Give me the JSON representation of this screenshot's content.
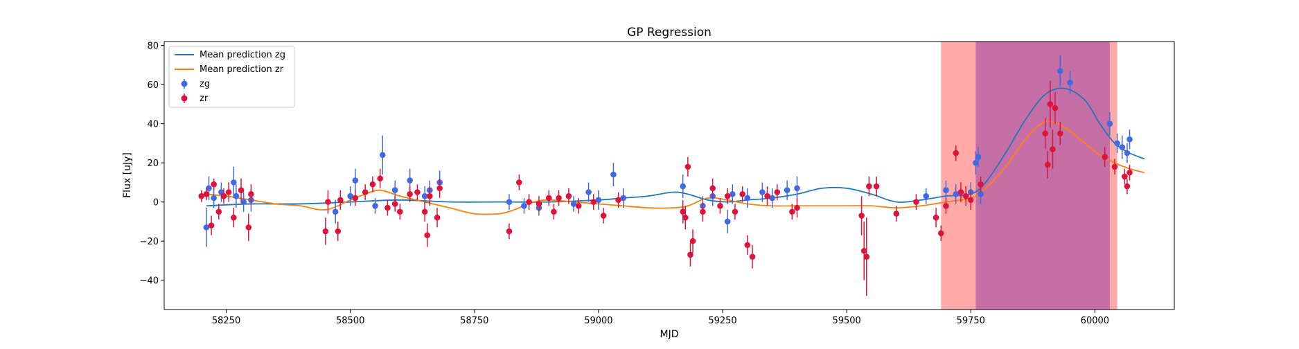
{
  "chart_data": {
    "type": "scatter",
    "title": "GP Regression",
    "xlabel": "MJD",
    "ylabel": "Flux [uJy]",
    "xlim": [
      58125,
      60160
    ],
    "ylim": [
      -55,
      82
    ],
    "xticks": [
      58250,
      58500,
      58750,
      59000,
      59250,
      59500,
      59750,
      60000
    ],
    "yticks": [
      -40,
      -20,
      0,
      20,
      40,
      60,
      80
    ],
    "grid": false,
    "legend_position": "top-left",
    "legend": [
      "Mean prediction zg",
      "Mean prediction zr",
      "zg",
      "zr"
    ],
    "colors": {
      "zg_line": "#1f77b4",
      "zr_line": "#ff7f0e",
      "zg_points": "#4169e1",
      "zr_points": "#dc143c",
      "span_zr": "#ffa4a4",
      "span_zg": "#c06aa6"
    },
    "shaded_regions": [
      {
        "band": "zr",
        "x": [
          59690,
          60045
        ]
      },
      {
        "band": "zg",
        "x": [
          59760,
          60030
        ]
      }
    ],
    "series": [
      {
        "name": "Mean prediction zg",
        "kind": "line",
        "x": [
          58210,
          58300,
          58400,
          58500,
          58600,
          58700,
          58800,
          58900,
          59000,
          59050,
          59100,
          59150,
          59180,
          59220,
          59260,
          59300,
          59350,
          59400,
          59450,
          59500,
          59550,
          59600,
          59650,
          59700,
          59750,
          59780,
          59820,
          59860,
          59900,
          59940,
          59980,
          60010,
          60040,
          60070,
          60100
        ],
        "y": [
          -2,
          -1,
          -1,
          0,
          1,
          0,
          0,
          0,
          1,
          2,
          3,
          5,
          4,
          1,
          0,
          1,
          2,
          4,
          7,
          7,
          4,
          0,
          1,
          3,
          4,
          10,
          25,
          42,
          55,
          58,
          52,
          40,
          30,
          25,
          22
        ]
      },
      {
        "name": "Mean prediction zr",
        "kind": "line",
        "x": [
          58210,
          58250,
          58300,
          58350,
          58400,
          58450,
          58500,
          58530,
          58560,
          58600,
          58650,
          58700,
          58750,
          58800,
          58830,
          58870,
          58900,
          58950,
          59000,
          59050,
          59100,
          59150,
          59180,
          59220,
          59260,
          59300,
          59350,
          59400,
          59450,
          59500,
          59550,
          59600,
          59650,
          59700,
          59750,
          59780,
          59820,
          59860,
          59900,
          59940,
          59980,
          60010,
          60040,
          60070,
          60100
        ],
        "y": [
          4,
          3,
          1,
          -1,
          -2,
          -4,
          1,
          4,
          6,
          3,
          0,
          -3,
          -6,
          -6,
          -4,
          0,
          1,
          0,
          -1,
          -2,
          -3,
          -3,
          -2,
          2,
          1,
          -1,
          -2,
          -2,
          -2,
          -2,
          -2,
          -3,
          -2,
          0,
          2,
          7,
          18,
          32,
          41,
          38,
          30,
          24,
          20,
          17,
          15
        ]
      },
      {
        "name": "zg",
        "kind": "points",
        "x": [
          58210,
          58215,
          58225,
          58240,
          58265,
          58270,
          58285,
          58300,
          58470,
          58500,
          58510,
          58550,
          58565,
          58590,
          58620,
          58650,
          58660,
          58680,
          58820,
          58850,
          58880,
          58950,
          58980,
          59000,
          59030,
          59050,
          59170,
          59210,
          59230,
          59260,
          59270,
          59300,
          59330,
          59350,
          59380,
          59400,
          59660,
          59700,
          59720,
          59750,
          59760,
          59765,
          59770,
          59930,
          59950,
          60030,
          60045,
          60055,
          60065,
          60070
        ],
        "y": [
          -13,
          7,
          2,
          5,
          10,
          3,
          0,
          1,
          -5,
          3,
          11,
          -2,
          24,
          6,
          11,
          3,
          6,
          10,
          0,
          -2,
          -3,
          -1,
          5,
          1,
          14,
          2,
          8,
          -2,
          3,
          -10,
          4,
          2,
          5,
          2,
          6,
          7,
          3,
          6,
          4,
          5,
          20,
          23,
          4,
          67,
          61,
          40,
          30,
          28,
          25,
          32
        ],
        "err": [
          10,
          6,
          5,
          5,
          8,
          6,
          5,
          6,
          6,
          5,
          6,
          4,
          10,
          5,
          6,
          5,
          5,
          6,
          4,
          4,
          4,
          4,
          5,
          5,
          6,
          5,
          6,
          5,
          5,
          6,
          5,
          5,
          5,
          5,
          5,
          6,
          4,
          5,
          5,
          5,
          6,
          5,
          5,
          8,
          6,
          6,
          5,
          6,
          5,
          5
        ]
      },
      {
        "name": "zr",
        "kind": "points",
        "x": [
          58200,
          58210,
          58220,
          58225,
          58235,
          58245,
          58255,
          58265,
          58280,
          58295,
          58300,
          58450,
          58455,
          58475,
          58480,
          58510,
          58530,
          58545,
          58560,
          58575,
          58590,
          58600,
          58620,
          58635,
          58650,
          58655,
          58660,
          58675,
          58680,
          58820,
          58840,
          58860,
          58880,
          58900,
          58910,
          58920,
          58940,
          58960,
          58990,
          59010,
          59040,
          59170,
          59175,
          59180,
          59185,
          59190,
          59210,
          59230,
          59245,
          59260,
          59275,
          59290,
          59300,
          59310,
          59340,
          59360,
          59390,
          59400,
          59530,
          59535,
          59540,
          59545,
          59560,
          59600,
          59640,
          59680,
          59690,
          59700,
          59720,
          59730,
          59740,
          59750,
          59770,
          59900,
          59905,
          59910,
          59915,
          59920,
          59930,
          60020,
          60040,
          60060,
          60065,
          60070
        ],
        "y": [
          3,
          4,
          -12,
          9,
          -5,
          3,
          5,
          -8,
          6,
          -13,
          4,
          -15,
          0,
          -15,
          1,
          2,
          5,
          9,
          12,
          -3,
          -1,
          -5,
          4,
          5,
          -5,
          -17,
          3,
          -8,
          7,
          -15,
          10,
          0,
          -1,
          2,
          -5,
          2,
          3,
          -2,
          0,
          -7,
          1,
          -5,
          -8,
          18,
          -27,
          -20,
          -5,
          7,
          -2,
          3,
          -5,
          4,
          -22,
          -28,
          3,
          5,
          -5,
          -3,
          -7,
          -25,
          -28,
          8,
          8,
          -6,
          0,
          -8,
          -16,
          -2,
          25,
          5,
          3,
          1,
          9,
          35,
          19,
          50,
          27,
          48,
          35,
          23,
          18,
          13,
          8,
          15
        ],
        "err": [
          3,
          3,
          5,
          3,
          4,
          4,
          5,
          5,
          6,
          7,
          5,
          7,
          6,
          5,
          5,
          4,
          4,
          4,
          5,
          4,
          4,
          4,
          4,
          4,
          5,
          6,
          5,
          5,
          5,
          4,
          4,
          4,
          4,
          4,
          4,
          4,
          4,
          4,
          4,
          4,
          4,
          6,
          6,
          5,
          6,
          6,
          5,
          5,
          4,
          4,
          4,
          4,
          5,
          6,
          5,
          4,
          4,
          5,
          10,
          15,
          20,
          5,
          5,
          4,
          4,
          5,
          4,
          4,
          4,
          5,
          5,
          5,
          4,
          8,
          7,
          12,
          10,
          8,
          6,
          5,
          4,
          4,
          4,
          4
        ]
      }
    ]
  }
}
